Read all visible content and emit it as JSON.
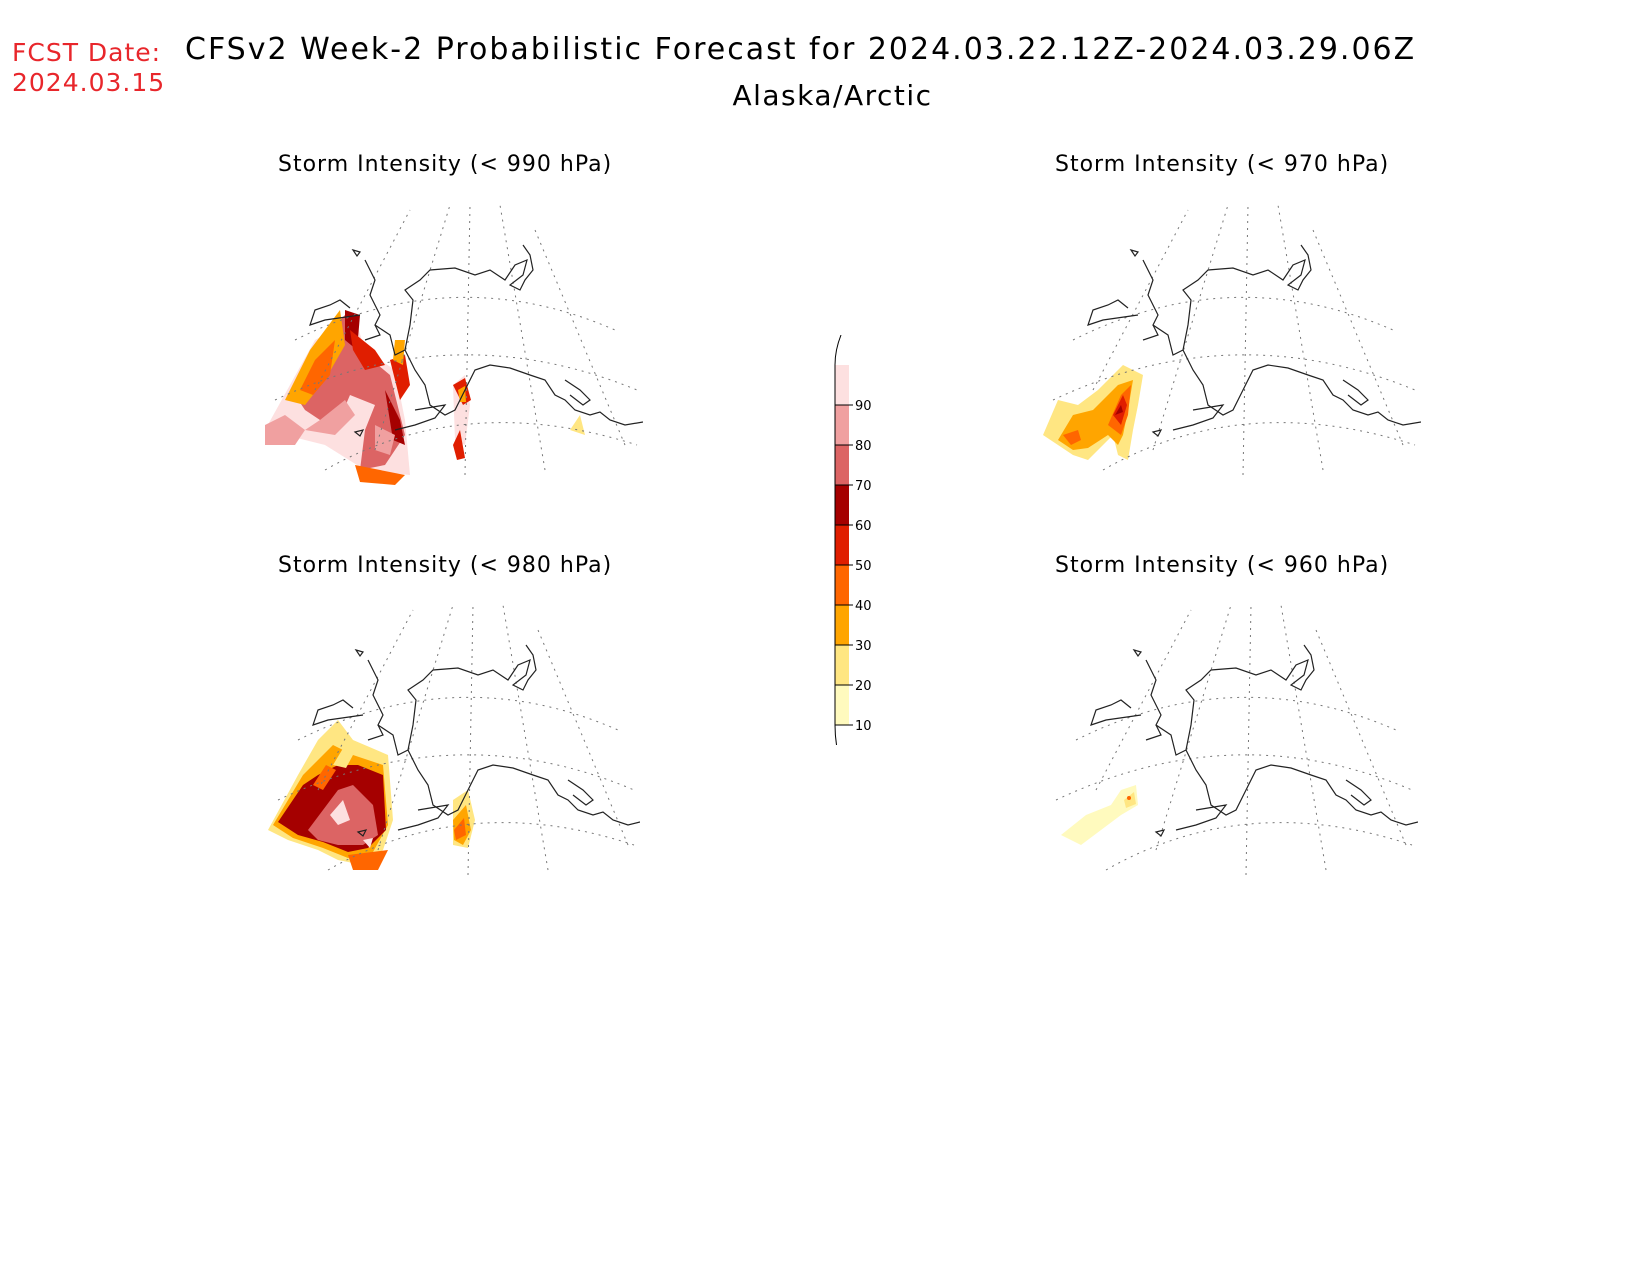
{
  "header": {
    "fcst_label": "FCST Date:",
    "fcst_date": "2024.03.15",
    "title": "CFSv2 Week-2 Probabilistic Forecast for 2024.03.22.12Z-2024.03.29.06Z",
    "region": "Alaska/Arctic"
  },
  "panels": [
    {
      "id": "p990",
      "title": "Storm Intensity (< 990 hPa)"
    },
    {
      "id": "p970",
      "title": "Storm Intensity (< 970 hPa)"
    },
    {
      "id": "p980",
      "title": "Storm Intensity (< 980 hPa)"
    },
    {
      "id": "p960",
      "title": "Storm Intensity (< 960 hPa)"
    }
  ],
  "legend": {
    "levels": [
      "10",
      "20",
      "30",
      "40",
      "50",
      "60",
      "70",
      "80",
      "90"
    ],
    "colors": [
      "#fffabe",
      "#ffe682",
      "#ffa500",
      "#ff6600",
      "#e01e00",
      "#a50000",
      "#dc6464",
      "#f0a0a0",
      "#fde0e0"
    ]
  }
}
